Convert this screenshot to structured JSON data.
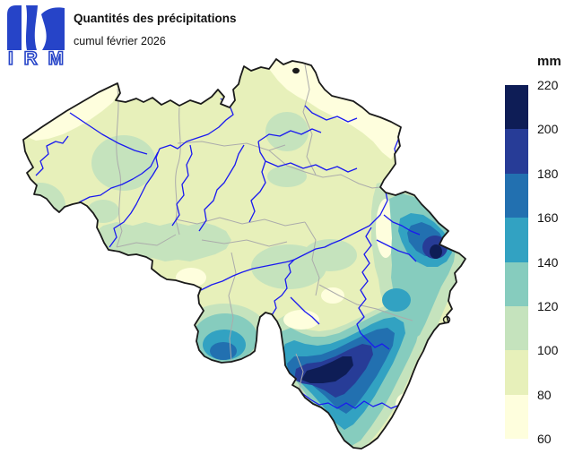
{
  "header": {
    "logo_text": "IRM",
    "title": "Quantités des précipitations",
    "subtitle": "cumul février 2026"
  },
  "legend": {
    "unit": "mm",
    "tick_labels": [
      "220",
      "200",
      "180",
      "160",
      "140",
      "120",
      "100",
      "80",
      "60"
    ],
    "swatch_order_top_to_bottom": [
      "b200",
      "b180",
      "b160",
      "b140",
      "b120",
      "b100",
      "b80",
      "b60"
    ],
    "band_colors": {
      "b60": "#FEFEDD",
      "b80": "#E7F0BA",
      "b100": "#C5E3BD",
      "b120": "#86CCBE",
      "b140": "#32A2C2",
      "b160": "#2270B0",
      "b180": "#273C97",
      "b200": "#0E1D56"
    }
  },
  "map": {
    "colors": {
      "country_border": "#1A1A1A",
      "province_border": "#ABABAB",
      "river": "#1A1AF0",
      "logo_blue": "#2644C8"
    }
  }
}
